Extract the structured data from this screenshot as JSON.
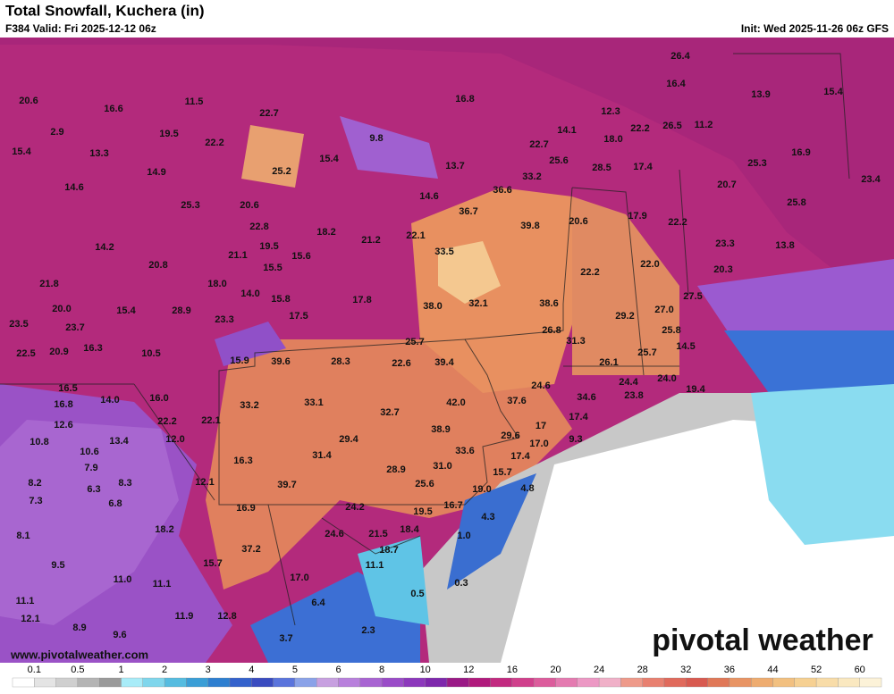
{
  "header": {
    "title": "Total Snowfall, Kuchera (in)",
    "valid": "F384 Valid: Fri 2025-12-12 06z",
    "init": "Init: Wed 2025-11-26 06z GFS"
  },
  "map": {
    "labels": [
      "20.6",
      "16.6",
      "11.5",
      "22.7",
      "16.8",
      "26.4",
      "16.4",
      "13.9",
      "15.4",
      "2.9",
      "19.5",
      "22.2",
      "9.8",
      "12.3",
      "14.1",
      "18.0",
      "22.2",
      "26.5",
      "11.2",
      "15.4",
      "13.3",
      "15.4",
      "22.7",
      "25.6",
      "28.5",
      "17.4",
      "16.9",
      "25.3",
      "14.9",
      "25.2",
      "13.7",
      "33.2",
      "20.7",
      "23.4",
      "14.6",
      "36.6",
      "14.6",
      "25.3",
      "20.6",
      "36.7",
      "20.6",
      "17.9",
      "25.8",
      "22.8",
      "18.2",
      "21.2",
      "22.1",
      "39.8",
      "22.2",
      "14.2",
      "19.5",
      "21.1",
      "15.6",
      "33.5",
      "23.3",
      "13.8",
      "20.8",
      "15.5",
      "22.2",
      "22.0",
      "20.3",
      "21.8",
      "18.0",
      "14.0",
      "15.8",
      "17.8",
      "38.0",
      "32.1",
      "38.6",
      "27.5",
      "20.0",
      "15.4",
      "28.9",
      "23.3",
      "17.5",
      "29.2",
      "27.0",
      "23.5",
      "23.7",
      "26.8",
      "25.8",
      "14.5",
      "16.3",
      "25.7",
      "31.3",
      "25.7",
      "22.5",
      "20.9",
      "10.5",
      "15.9",
      "39.6",
      "28.3",
      "22.6",
      "39.4",
      "26.1",
      "24.6",
      "24.4",
      "24.0",
      "19.4",
      "16.5",
      "14.0",
      "16.0",
      "33.1",
      "42.0",
      "37.6",
      "34.6",
      "23.8",
      "16.8",
      "33.2",
      "32.7",
      "17.4",
      "12.6",
      "22.2",
      "22.1",
      "38.9",
      "17",
      "29.6",
      "9.3",
      "10.8",
      "13.4",
      "12.0",
      "29.4",
      "17.0",
      "10.6",
      "33.6",
      "17.4",
      "16.3",
      "31.4",
      "7.9",
      "28.9",
      "31.0",
      "15.7",
      "8.2",
      "8.3",
      "12.1",
      "25.6",
      "39.7",
      "19.0",
      "4.8",
      "6.3",
      "7.3",
      "6.8",
      "16.9",
      "24.2",
      "16.7",
      "19.5",
      "4.3",
      "18.2",
      "24.6",
      "21.5",
      "18.4",
      "8.1",
      "1.0",
      "37.2",
      "18.7",
      "9.5",
      "15.7",
      "11.1",
      "11.0",
      "17.0",
      "11.1",
      "0.3",
      "0.5",
      "11.1",
      "6.4",
      "12.1",
      "11.9",
      "12.8",
      "8.9",
      "2.3",
      "9.6",
      "3.7"
    ],
    "watermark": "pivotal weather",
    "website": "www.pivotalweather.com"
  },
  "legend": {
    "ticks": [
      "0.1",
      "0.5",
      "1",
      "2",
      "3",
      "4",
      "5",
      "6",
      "8",
      "10",
      "12",
      "16",
      "20",
      "24",
      "28",
      "32",
      "36",
      "44",
      "52",
      "60"
    ]
  }
}
